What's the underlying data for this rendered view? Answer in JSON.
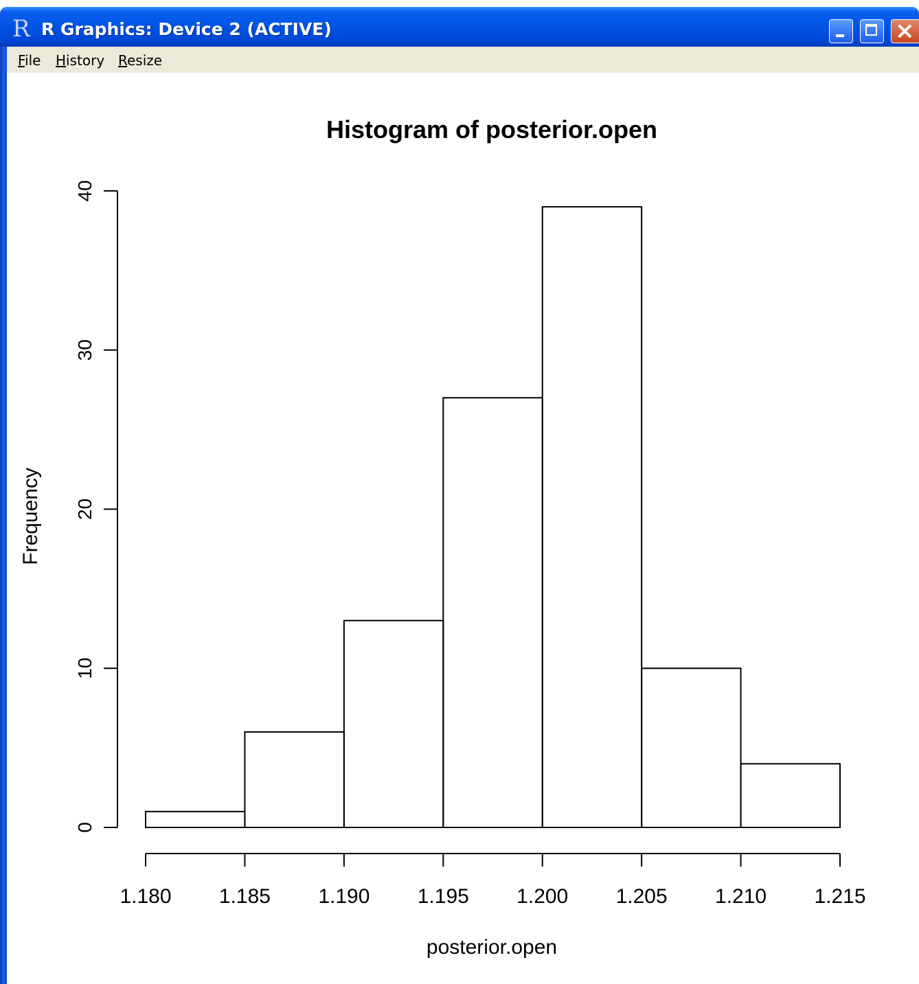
{
  "window": {
    "title": "R Graphics: Device 2 (ACTIVE)",
    "app_icon_glyph": "R",
    "controls": [
      "minimize-icon",
      "maximize-icon",
      "close-icon"
    ]
  },
  "menu": {
    "items": [
      {
        "label": "File",
        "accel": "F"
      },
      {
        "label": "History",
        "accel": "H"
      },
      {
        "label": "Resize",
        "accel": "R"
      }
    ]
  },
  "colors": {
    "titlebar": "#0055e5",
    "menubar": "#ece9d8",
    "close_button": "#c7461f",
    "plot_ink": "#000000"
  },
  "chart_data": {
    "type": "bar",
    "title": "Histogram of posterior.open",
    "xlabel": "posterior.open",
    "ylabel": "Frequency",
    "bins": [
      {
        "from": 1.18,
        "to": 1.185,
        "value": 1
      },
      {
        "from": 1.185,
        "to": 1.19,
        "value": 6
      },
      {
        "from": 1.19,
        "to": 1.195,
        "value": 13
      },
      {
        "from": 1.195,
        "to": 1.2,
        "value": 27
      },
      {
        "from": 1.2,
        "to": 1.205,
        "value": 39
      },
      {
        "from": 1.205,
        "to": 1.21,
        "value": 10
      },
      {
        "from": 1.21,
        "to": 1.215,
        "value": 4
      }
    ],
    "xlim": [
      1.18,
      1.215
    ],
    "ylim": [
      0,
      40
    ],
    "x_ticks": [
      "1.180",
      "1.185",
      "1.190",
      "1.195",
      "1.200",
      "1.205",
      "1.210",
      "1.215"
    ],
    "y_ticks": [
      "0",
      "10",
      "20",
      "30",
      "40"
    ],
    "grid": false,
    "legend": "none"
  }
}
